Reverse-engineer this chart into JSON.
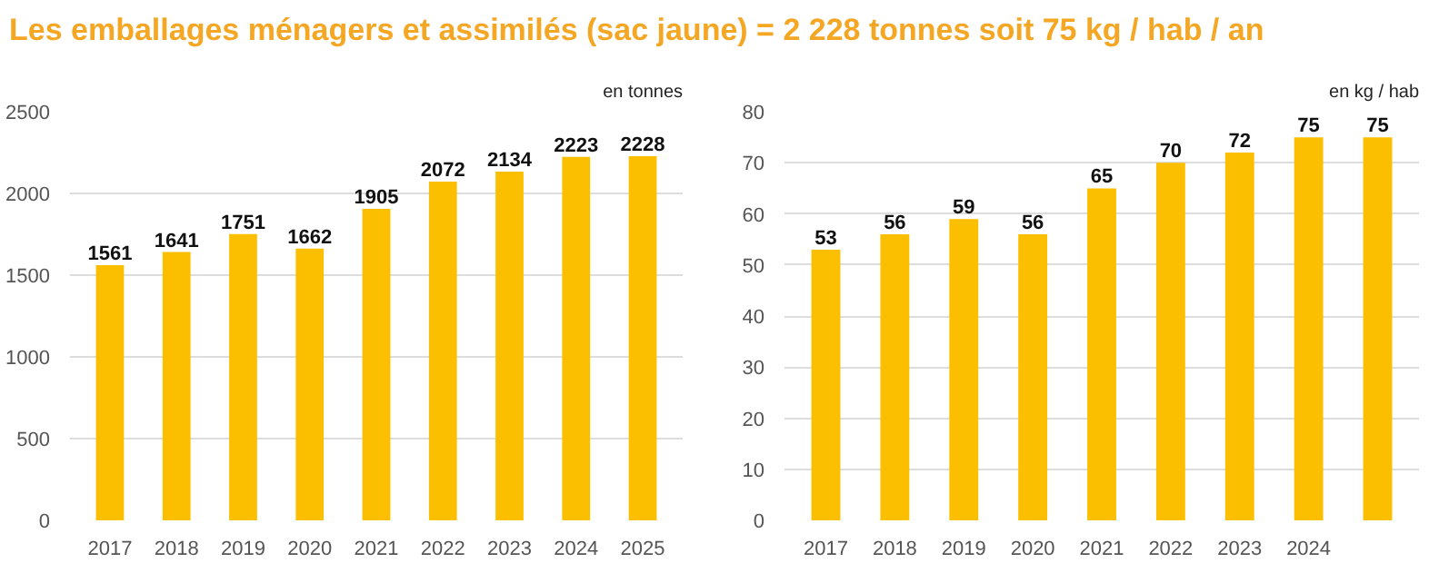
{
  "chart_data": [
    {
      "type": "bar",
      "title": "Les emballages ménagers et assimilés (sac jaune) = 2 228 tonnes soit 75 kg / hab / an",
      "categories": [
        "2017",
        "2018",
        "2019",
        "2020",
        "2021",
        "2022",
        "2023",
        "2024",
        "2025"
      ],
      "values": [
        1561,
        1641,
        1751,
        1662,
        1905,
        2072,
        2134,
        2223,
        2228
      ],
      "color": "#fcbf00",
      "ylim": [
        0,
        2500
      ],
      "yticks": [
        0,
        500,
        1000,
        1500,
        2000,
        2500
      ],
      "grid": "y",
      "data_labels": true,
      "annotations": [
        "en tonnes"
      ]
    },
    {
      "type": "bar",
      "categories": [
        "2017",
        "2018",
        "2019",
        "2020",
        "2021",
        "2022",
        "2023",
        "2024",
        null
      ],
      "values": [
        53,
        56,
        59,
        56,
        65,
        70,
        72,
        75,
        75
      ],
      "color": "#fcbf00",
      "ylim": [
        0,
        80
      ],
      "yticks": [
        0,
        10,
        20,
        30,
        40,
        50,
        60,
        70,
        80
      ],
      "grid": "y",
      "data_labels": true,
      "annotations": [
        "en kg / hab"
      ]
    }
  ]
}
